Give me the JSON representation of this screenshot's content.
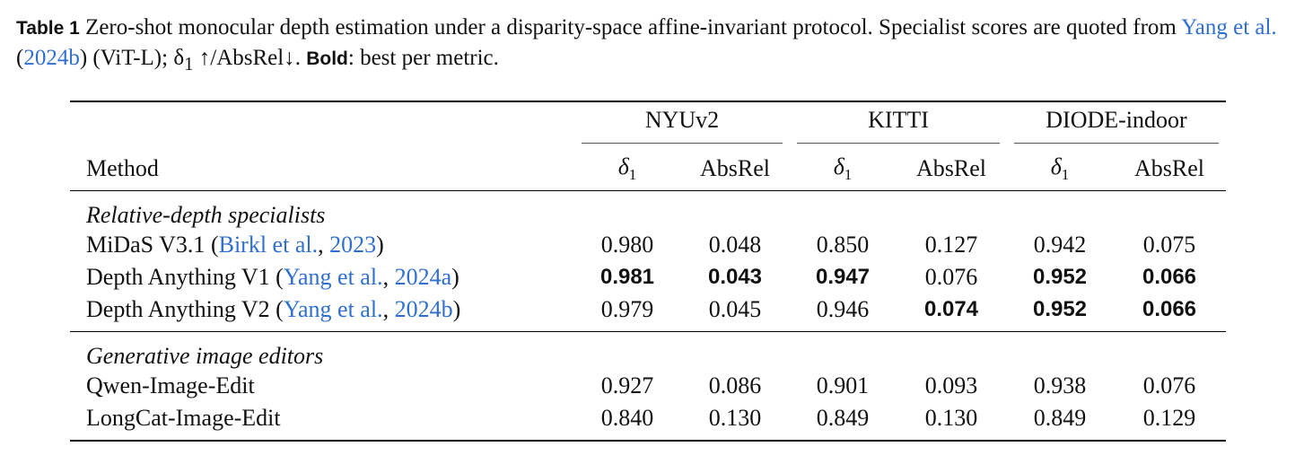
{
  "caption": {
    "label": "Table 1",
    "text1": " Zero-shot monocular depth estimation under a disparity-space affine-invariant protocol. Specialist scores are quoted from ",
    "ref_authors": "Yang et al.",
    "ref_open": " (",
    "ref_year": "2024b",
    "text2": ") (ViT-L); δ",
    "delta_sub": "1",
    "text3": " ↑/AbsRel↓. ",
    "bold_label": "Bold",
    "text4": ": best per metric."
  },
  "table": {
    "groups": [
      "NYUv2",
      "KITTI",
      "DIODE-indoor"
    ],
    "method_header": "Method",
    "delta_symbol": "δ",
    "delta_sub": "1",
    "absrel_header": "AbsRel",
    "sections": [
      {
        "title": "Relative-depth specialists",
        "rows": [
          {
            "name": "MiDaS V3.1",
            "ref_authors": "Birkl et al.",
            "ref_year": "2023",
            "values": [
              "0.980",
              "0.048",
              "0.850",
              "0.127",
              "0.942",
              "0.075"
            ],
            "bold": [
              false,
              false,
              false,
              false,
              false,
              false
            ]
          },
          {
            "name": "Depth Anything V1",
            "ref_authors": "Yang et al.",
            "ref_year": "2024a",
            "values": [
              "0.981",
              "0.043",
              "0.947",
              "0.076",
              "0.952",
              "0.066"
            ],
            "bold": [
              true,
              true,
              true,
              false,
              true,
              true
            ]
          },
          {
            "name": "Depth Anything V2",
            "ref_authors": "Yang et al.",
            "ref_year": "2024b",
            "values": [
              "0.979",
              "0.045",
              "0.946",
              "0.074",
              "0.952",
              "0.066"
            ],
            "bold": [
              false,
              false,
              false,
              true,
              true,
              true
            ]
          }
        ]
      },
      {
        "title": "Generative image editors",
        "rows": [
          {
            "name": "Qwen-Image-Edit",
            "values": [
              "0.927",
              "0.086",
              "0.901",
              "0.093",
              "0.938",
              "0.076"
            ],
            "bold": [
              false,
              false,
              false,
              false,
              false,
              false
            ]
          },
          {
            "name": "LongCat-Image-Edit",
            "values": [
              "0.840",
              "0.130",
              "0.849",
              "0.130",
              "0.849",
              "0.129"
            ],
            "bold": [
              false,
              false,
              false,
              false,
              false,
              false
            ]
          }
        ]
      }
    ]
  }
}
